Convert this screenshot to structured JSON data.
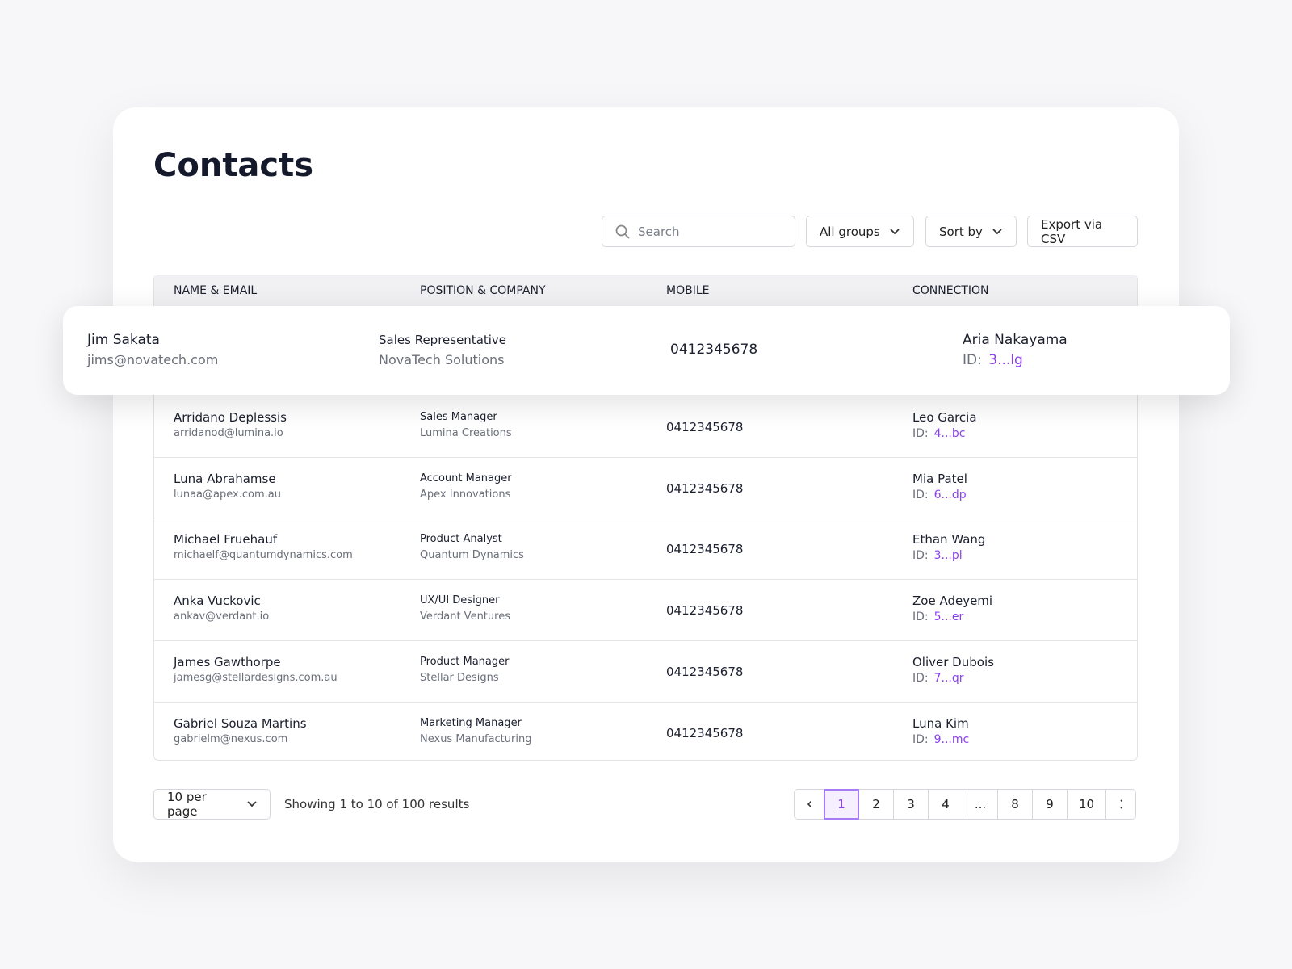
{
  "header": {
    "title": "Contacts"
  },
  "toolbar": {
    "search_placeholder": "Search",
    "group_filter": "All groups",
    "sort": "Sort by",
    "export": "Export via CSV"
  },
  "table": {
    "columns": [
      "NAME & EMAIL",
      "POSITION & COMPANY",
      "MOBILE",
      "CONNECTION"
    ],
    "highlighted_row": {
      "name": "Jim Sakata",
      "email": "jims@novatech.com",
      "position": "Sales Representative",
      "company": "NovaTech Solutions",
      "mobile": "0412345678",
      "connection": "Aria Nakayama",
      "id_label": "ID:",
      "connection_id": "3...lg"
    },
    "rows": [
      {
        "name": "Arridano Deplessis",
        "email": "arridanod@lumina.io",
        "position": "Sales Manager",
        "company": "Lumina Creations",
        "mobile": "0412345678",
        "connection": "Leo Garcia",
        "id_label": "ID:",
        "connection_id": "4...bc"
      },
      {
        "name": "Luna Abrahamse",
        "email": "lunaa@apex.com.au",
        "position": "Account Manager",
        "company": "Apex Innovations",
        "mobile": "0412345678",
        "connection": "Mia Patel",
        "id_label": "ID:",
        "connection_id": "6...dp"
      },
      {
        "name": "Michael Fruehauf",
        "email": "michaelf@quantumdynamics.com",
        "position": "Product Analyst",
        "company": "Quantum Dynamics",
        "mobile": "0412345678",
        "connection": "Ethan Wang",
        "id_label": "ID:",
        "connection_id": "3...pl"
      },
      {
        "name": "Anka Vuckovic",
        "email": "ankav@verdant.io",
        "position": "UX/UI Designer",
        "company": "Verdant Ventures",
        "mobile": "0412345678",
        "connection": "Zoe Adeyemi",
        "id_label": "ID:",
        "connection_id": "5...er"
      },
      {
        "name": "James Gawthorpe",
        "email": "jamesg@stellardesigns.com.au",
        "position": "Product Manager",
        "company": "Stellar Designs",
        "mobile": "0412345678",
        "connection": "Oliver Dubois",
        "id_label": "ID:",
        "connection_id": "7...qr"
      },
      {
        "name": "Gabriel Souza Martins",
        "email": "gabrielm@nexus.com",
        "position": "Marketing Manager",
        "company": "Nexus Manufacturing",
        "mobile": "0412345678",
        "connection": "Luna Kim",
        "id_label": "ID:",
        "connection_id": "9...mc"
      }
    ]
  },
  "footer": {
    "per_page": "10 per page",
    "summary": "Showing 1 to 10 of 100 results",
    "pages": [
      "1",
      "2",
      "3",
      "4",
      "...",
      "8",
      "9",
      "10"
    ],
    "current_page": "1"
  }
}
